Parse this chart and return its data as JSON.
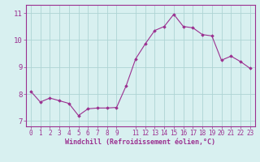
{
  "x": [
    0,
    1,
    2,
    3,
    4,
    5,
    6,
    7,
    8,
    9,
    10,
    11,
    12,
    13,
    14,
    15,
    16,
    17,
    18,
    19,
    20,
    21,
    22,
    23
  ],
  "y": [
    8.1,
    7.7,
    7.85,
    7.75,
    7.65,
    7.2,
    7.45,
    7.48,
    7.48,
    7.5,
    8.3,
    9.3,
    9.85,
    10.35,
    10.5,
    10.95,
    10.5,
    10.45,
    10.2,
    10.15,
    9.25,
    9.4,
    9.2,
    8.95
  ],
  "line_color": "#9b3090",
  "marker": "D",
  "markersize": 1.8,
  "linewidth": 0.8,
  "bg_color": "#d8f0f0",
  "grid_color": "#aed4d4",
  "xlabel": "Windchill (Refroidissement éolien,°C)",
  "xlabel_color": "#9b3090",
  "tick_color": "#9b3090",
  "spine_color": "#9b3090",
  "ylim": [
    6.8,
    11.3
  ],
  "xlim": [
    -0.5,
    23.5
  ],
  "yticks": [
    7,
    8,
    9,
    10,
    11
  ],
  "xticks": [
    0,
    1,
    2,
    3,
    4,
    5,
    6,
    7,
    8,
    9,
    11,
    12,
    13,
    14,
    15,
    16,
    17,
    18,
    19,
    20,
    21,
    22,
    23
  ],
  "xtick_labels": [
    "0",
    "1",
    "2",
    "3",
    "4",
    "5",
    "6",
    "7",
    "8",
    "9",
    "11",
    "12",
    "13",
    "14",
    "15",
    "16",
    "17",
    "18",
    "19",
    "20",
    "21",
    "22",
    "23"
  ],
  "tick_fontsize": 5.5,
  "ylabel_fontsize": 6.5,
  "xlabel_fontsize": 6.0
}
